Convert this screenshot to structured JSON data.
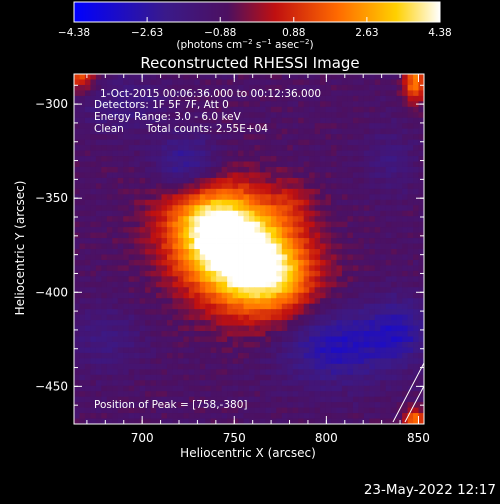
{
  "chart_data": {
    "type": "heatmap",
    "title": "Reconstructed RHESSI Image",
    "xlabel": "Heliocentric X (arcsec)",
    "ylabel": "Heliocentric Y (arcsec)",
    "xlim": [
      663,
      853
    ],
    "ylim": [
      -470,
      -284
    ],
    "xticks": [
      700,
      750,
      800,
      850
    ],
    "yticks": [
      -300,
      -350,
      -400,
      -450
    ],
    "colorbar": {
      "min": -4.38,
      "max": 4.38,
      "ticks": [
        "-4.38",
        "-2.63",
        "-0.88",
        "0.88",
        "2.63",
        "4.38"
      ],
      "unit_label": "(photons cm^-2 s^-1 asec^-2)",
      "colormap": "blue-purple-red-orange-yellow-white"
    },
    "annotations": [
      "1-Oct-2015 00:06:36.000 to 00:12:36.000",
      "Detectors: 1F 5F 7F, Att 0",
      "Energy Range: 3.0 - 6.0 keV",
      "Clean",
      "Total counts: 2.55E+04"
    ],
    "peak_label": "Position of Peak = [758,-380]",
    "peak": {
      "x": 758,
      "y": -380,
      "value": 4.38
    },
    "sources": [
      {
        "x": 752,
        "y": -378,
        "sx": 26,
        "sy": 19,
        "rot_deg": -35,
        "amp": 7.2
      },
      {
        "x": 738,
        "y": -362,
        "sx": 12,
        "sy": 10,
        "rot_deg": 0,
        "amp": 1.2
      },
      {
        "x": 772,
        "y": -392,
        "sx": 12,
        "sy": 10,
        "rot_deg": 0,
        "amp": 1.0
      },
      {
        "x": 782,
        "y": -352,
        "sx": 9,
        "sy": 8,
        "rot_deg": 0,
        "amp": 0.8
      },
      {
        "x": 724,
        "y": -333,
        "sx": 13,
        "sy": 11,
        "rot_deg": 0,
        "amp": -2.0
      },
      {
        "x": 805,
        "y": -428,
        "sx": 22,
        "sy": 14,
        "rot_deg": 0,
        "amp": -2.2
      },
      {
        "x": 840,
        "y": -420,
        "sx": 12,
        "sy": 12,
        "rot_deg": 0,
        "amp": -1.6
      },
      {
        "x": 680,
        "y": -425,
        "sx": 14,
        "sy": 12,
        "rot_deg": 0,
        "amp": -0.9
      },
      {
        "x": 690,
        "y": -300,
        "sx": 16,
        "sy": 10,
        "rot_deg": 0,
        "amp": -1.0
      },
      {
        "x": 835,
        "y": -330,
        "sx": 10,
        "sy": 12,
        "rot_deg": 0,
        "amp": -0.8
      },
      {
        "x": 666,
        "y": -285,
        "sx": 6,
        "sy": 6,
        "rot_deg": 0,
        "amp": 2.2
      },
      {
        "x": 848,
        "y": -288,
        "sx": 4,
        "sy": 8,
        "rot_deg": 0,
        "amp": 3.0
      },
      {
        "x": 848,
        "y": -468,
        "sx": 4,
        "sy": 4,
        "rot_deg": 0,
        "amp": 3.0
      }
    ],
    "background_level": -0.9
  },
  "timestamp": "23-May-2022 12:17"
}
